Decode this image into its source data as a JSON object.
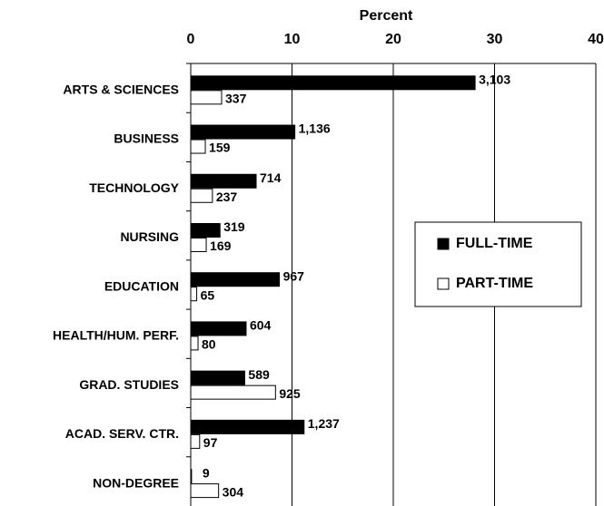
{
  "chart_data": {
    "type": "bar",
    "orientation": "horizontal",
    "x_axis_label": "Percent",
    "categories": [
      "ARTS & SCIENCES",
      "BUSINESS",
      "TECHNOLOGY",
      "NURSING",
      "EDUCATION",
      "HEALTH/HUM. PERF.",
      "GRAD. STUDIES",
      "ACAD. SERV. CTR.",
      "NON-DEGREE"
    ],
    "series": [
      {
        "name": "FULL-TIME",
        "color": "#000000",
        "values": [
          28.08,
          10.28,
          6.46,
          2.89,
          8.75,
          5.47,
          5.33,
          11.19,
          0.08
        ],
        "counts": [
          {
            "label": "3,103"
          },
          {
            "label": "1,136"
          },
          {
            "label": "714"
          },
          {
            "label": "319"
          },
          {
            "label": "967"
          },
          {
            "label": "604"
          },
          {
            "label": "589"
          },
          {
            "label": "1,237"
          },
          {
            "label": "9"
          }
        ]
      },
      {
        "name": "PART-TIME",
        "color": "#ffffff",
        "values": [
          3.05,
          1.44,
          2.14,
          1.53,
          0.59,
          0.72,
          8.37,
          0.88,
          2.75
        ],
        "counts": [
          {
            "label": "337"
          },
          {
            "label": "159"
          },
          {
            "label": "237"
          },
          {
            "label": "169"
          },
          {
            "label": "65"
          },
          {
            "label": "80"
          },
          {
            "label": "925"
          },
          {
            "label": "97"
          },
          {
            "label": "304"
          }
        ]
      }
    ],
    "xlim": [
      0,
      40
    ],
    "xticks": [
      0,
      10,
      20,
      30,
      40
    ],
    "grid": true,
    "legend": "right"
  }
}
